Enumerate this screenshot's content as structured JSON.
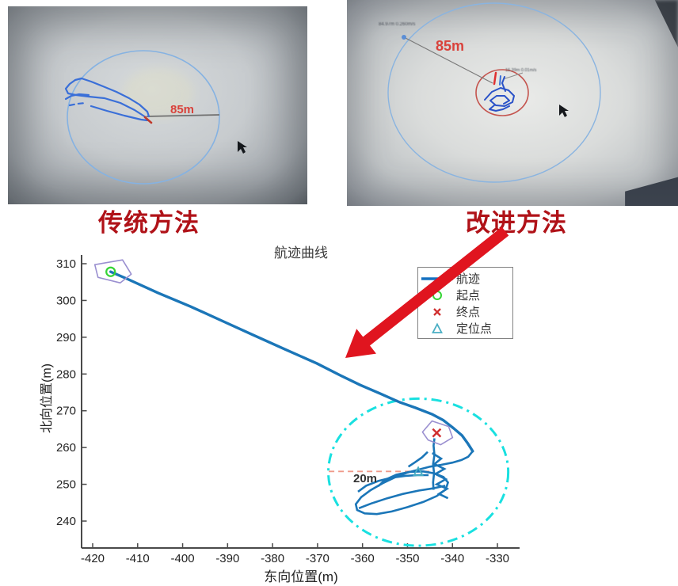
{
  "photos": {
    "left": {
      "caption": "传统方法",
      "radius_label": "85m"
    },
    "right": {
      "caption": "改进方法",
      "radius_label": "85m",
      "annotation_top": "84.97m 0.260m/s",
      "annotation_center": "16.39m 0.01m/s"
    }
  },
  "colors": {
    "caption_red": "#b01218",
    "radius_label_red": "#d9423b",
    "trajectory_blue": "#1b76b8",
    "photo_trajectory_blue": "#3a6fd8",
    "cyan_circle": "#19e0e0",
    "arrow_red": "#e0151f",
    "start_green": "#35d435",
    "end_red": "#d03030",
    "locate_teal": "#4aafc4",
    "boat_purple": "#9a8fd0",
    "radius_line_salmon": "#ef9a8a",
    "axis_gray": "#4a4a4a"
  },
  "chart_data": {
    "type": "line",
    "title": "航迹曲线",
    "xlabel": "东向位置(m)",
    "ylabel": "北向位置(m)",
    "xlim": [
      -422.5,
      -324
    ],
    "ylim": [
      233,
      313.5
    ],
    "x_ticks": [
      -420,
      -410,
      -400,
      -390,
      -380,
      -370,
      -360,
      -350,
      -340,
      -330
    ],
    "y_ticks": [
      310,
      300,
      290,
      280,
      270,
      260,
      250,
      240
    ],
    "grid": false,
    "legend_position": "upper right",
    "legend": [
      {
        "label": "航迹",
        "marker": "line"
      },
      {
        "label": "起点",
        "marker": "circle"
      },
      {
        "label": "终点",
        "marker": "x"
      },
      {
        "label": "定位点",
        "marker": "triangle"
      }
    ],
    "start_point": {
      "x": -416.0,
      "y": 307.8
    },
    "end_point": {
      "x": -343.5,
      "y": 264.0
    },
    "locate_point": {
      "x": -347.6,
      "y": 253.3
    },
    "uncertainty_circle": {
      "cx": -347.6,
      "cy": 253.3,
      "radius_m": 20,
      "label": "20m"
    },
    "radius_line": [
      [
        -367.5,
        253.5
      ],
      [
        -344.5,
        253.5
      ]
    ],
    "series": {
      "main": [
        [
          -416.0,
          307.8
        ],
        [
          -412.4,
          305.9
        ],
        [
          -405.4,
          302.0
        ],
        [
          -398.3,
          298.4
        ],
        [
          -391.3,
          294.5
        ],
        [
          -384.3,
          290.6
        ],
        [
          -377.2,
          286.7
        ],
        [
          -370.2,
          282.9
        ],
        [
          -364.9,
          279.6
        ],
        [
          -360.5,
          277.0
        ],
        [
          -356.1,
          274.7
        ],
        [
          -351.7,
          272.3
        ],
        [
          -348.2,
          270.8
        ],
        [
          -344.6,
          269.1
        ],
        [
          -342.0,
          267.4
        ],
        [
          -339.7,
          265.2
        ],
        [
          -337.9,
          263.3
        ],
        [
          -336.7,
          261.3
        ],
        [
          -335.9,
          259.8
        ],
        [
          -335.5,
          259.0
        ]
      ],
      "cluster": [
        [
          [
            -335.5,
            259.0
          ],
          [
            -336.5,
            257.5
          ],
          [
            -338.0,
            256.6
          ],
          [
            -340.0,
            255.9
          ],
          [
            -342.5,
            255.3
          ],
          [
            -345.0,
            254.8
          ],
          [
            -347.5,
            254.0
          ],
          [
            -350.0,
            253.2
          ],
          [
            -352.8,
            251.9
          ],
          [
            -355.5,
            250.3
          ],
          [
            -358.2,
            248.4
          ],
          [
            -360.3,
            246.5
          ],
          [
            -361.5,
            244.6
          ],
          [
            -361.2,
            243.0
          ],
          [
            -359.5,
            242.1
          ],
          [
            -356.8,
            241.9
          ],
          [
            -353.5,
            242.6
          ],
          [
            -350.0,
            243.8
          ],
          [
            -346.5,
            245.2
          ],
          [
            -343.5,
            246.8
          ],
          [
            -341.5,
            248.6
          ],
          [
            -341.0,
            250.5
          ],
          [
            -342.0,
            252.0
          ],
          [
            -344.0,
            253.0
          ],
          [
            -346.5,
            253.5
          ],
          [
            -349.5,
            253.4
          ],
          [
            -352.5,
            252.6
          ],
          [
            -355.0,
            251.2
          ],
          [
            -356.5,
            249.5
          ]
        ],
        [
          [
            -344.5,
            258.5
          ],
          [
            -342.5,
            257.0
          ],
          [
            -344.0,
            255.5
          ],
          [
            -341.8,
            254.2
          ],
          [
            -343.8,
            252.8
          ],
          [
            -341.5,
            251.4
          ],
          [
            -343.5,
            250.0
          ],
          [
            -341.2,
            248.8
          ],
          [
            -343.0,
            247.4
          ],
          [
            -341.0,
            246.2
          ]
        ],
        [
          [
            -344.0,
            262.5
          ],
          [
            -344.2,
            260.5
          ],
          [
            -344.0,
            258.0
          ],
          [
            -344.3,
            255.5
          ],
          [
            -344.1,
            253.0
          ],
          [
            -344.3,
            250.5
          ],
          [
            -344.2,
            248.5
          ]
        ],
        [
          [
            -360.8,
            243.5
          ],
          [
            -358.0,
            244.8
          ],
          [
            -354.5,
            246.2
          ],
          [
            -351.0,
            247.4
          ],
          [
            -347.5,
            248.3
          ],
          [
            -344.3,
            248.9
          ],
          [
            -341.6,
            249.6
          ]
        ],
        [
          [
            -361.0,
            248.0
          ],
          [
            -359.2,
            249.6
          ],
          [
            -356.5,
            250.9
          ],
          [
            -353.5,
            251.8
          ],
          [
            -350.5,
            252.3
          ],
          [
            -347.8,
            252.5
          ],
          [
            -345.3,
            252.5
          ]
        ],
        [
          [
            -345.5,
            258.8
          ],
          [
            -346.8,
            257.3
          ],
          [
            -348.3,
            256.0
          ],
          [
            -349.8,
            254.8
          ]
        ]
      ]
    }
  }
}
